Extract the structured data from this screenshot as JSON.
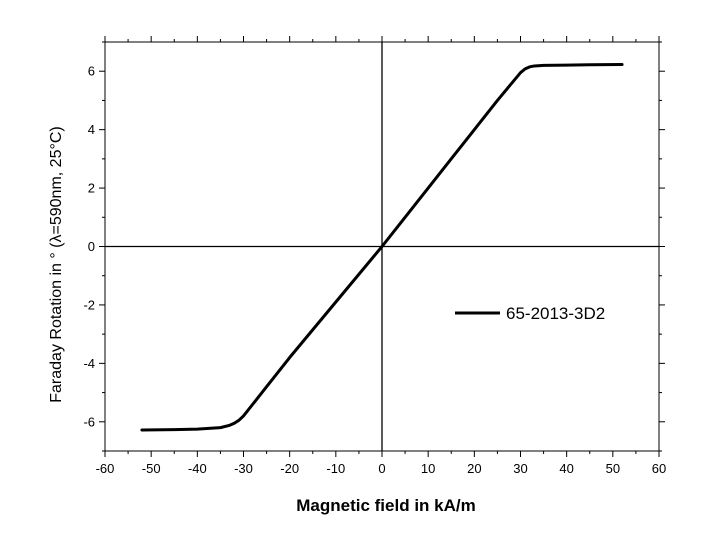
{
  "chart_data": {
    "type": "line",
    "xlabel": "Magnetic field in kA/m",
    "ylabel": "Faraday Rotation in ° (λ=590nm, 25°C)",
    "xlim": [
      -60,
      60
    ],
    "ylim": [
      -7,
      7
    ],
    "x_ticks": [
      -60,
      -50,
      -40,
      -30,
      -20,
      -10,
      0,
      10,
      20,
      30,
      40,
      50,
      60
    ],
    "y_ticks": [
      -6,
      -4,
      -2,
      0,
      2,
      4,
      6
    ],
    "grid": false,
    "zero_lines": true,
    "legend_position": "right",
    "series": [
      {
        "name": "65-2013-3D2",
        "color": "#000000",
        "x": [
          -52,
          -45,
          -40,
          -35,
          -33,
          -32,
          -31,
          -30,
          -25,
          -20,
          -15,
          -10,
          -5,
          0,
          5,
          10,
          15,
          20,
          25,
          30,
          31,
          32,
          33,
          35,
          40,
          45,
          52
        ],
        "y": [
          -6.28,
          -6.27,
          -6.25,
          -6.2,
          -6.12,
          -6.05,
          -5.95,
          -5.8,
          -4.8,
          -3.8,
          -2.85,
          -1.9,
          -0.95,
          0.0,
          1.0,
          2.0,
          3.0,
          4.0,
          5.0,
          5.95,
          6.08,
          6.15,
          6.18,
          6.2,
          6.21,
          6.22,
          6.23
        ]
      }
    ]
  }
}
